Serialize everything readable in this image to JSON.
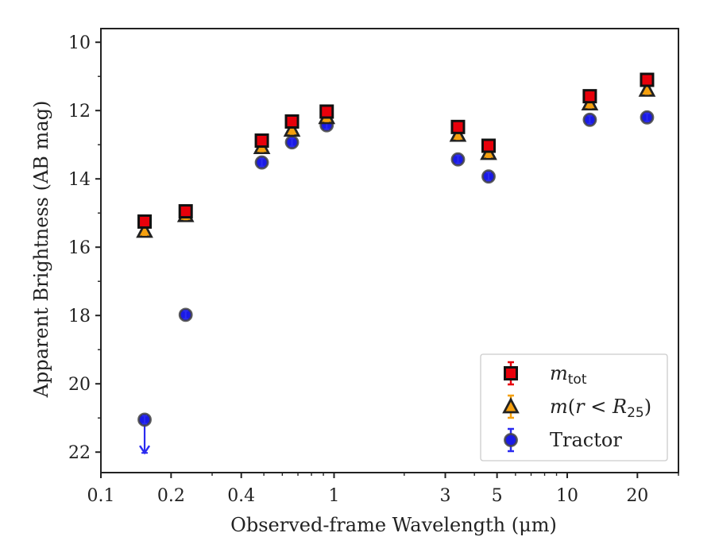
{
  "chart_data": {
    "type": "scatter",
    "xlabel": "Observed-frame Wavelength (μm)",
    "ylabel": "Apparent Brightness (AB mag)",
    "x_scale": "log",
    "xlim": [
      0.1,
      30
    ],
    "ylim": [
      22.6,
      9.6
    ],
    "y_inverted": true,
    "x_ticks": [
      0.1,
      0.2,
      0.4,
      1,
      3,
      5,
      10,
      20
    ],
    "x_tick_labels": [
      "0.1",
      "0.2",
      "0.4",
      "1",
      "3",
      "5",
      "10",
      "20"
    ],
    "y_ticks": [
      10,
      12,
      14,
      16,
      18,
      20,
      22
    ],
    "y_tick_labels": [
      "10",
      "12",
      "14",
      "16",
      "18",
      "20",
      "22"
    ],
    "grid": false,
    "legend_position": "bottom-right",
    "series": [
      {
        "name": "m_tot",
        "legend_label": "m_tot",
        "marker": "square",
        "color": "#e8000b",
        "edge_color": "#111111",
        "error_color": "#e8000b",
        "x": [
          0.154,
          0.231,
          0.49,
          0.66,
          0.93,
          3.4,
          4.6,
          12.5,
          22.0
        ],
        "y": [
          15.25,
          14.95,
          12.88,
          12.32,
          12.03,
          12.48,
          13.03,
          11.58,
          11.1
        ]
      },
      {
        "name": "m(r<R25)",
        "legend_label": "m(r < R25)",
        "marker": "triangle",
        "color": "#f5a00f",
        "edge_color": "#222222",
        "error_color": "#f5a00f",
        "x": [
          0.154,
          0.231,
          0.49,
          0.66,
          0.93,
          3.4,
          4.6,
          12.5,
          22.0
        ],
        "y": [
          15.53,
          15.07,
          13.08,
          12.57,
          12.2,
          12.72,
          13.25,
          11.8,
          11.4
        ]
      },
      {
        "name": "Tractor",
        "legend_label": "Tractor",
        "marker": "circle",
        "color": "#1a1ae6",
        "edge_color": "#444444",
        "error_color": "#2b2bf0",
        "x": [
          0.154,
          0.231,
          0.49,
          0.66,
          0.93,
          3.4,
          4.6,
          12.5,
          22.0
        ],
        "y": [
          21.05,
          17.98,
          13.52,
          12.93,
          12.43,
          13.43,
          13.93,
          12.27,
          12.2
        ],
        "upper_limit_index": 0,
        "upper_limit_to": 22.0
      }
    ]
  }
}
